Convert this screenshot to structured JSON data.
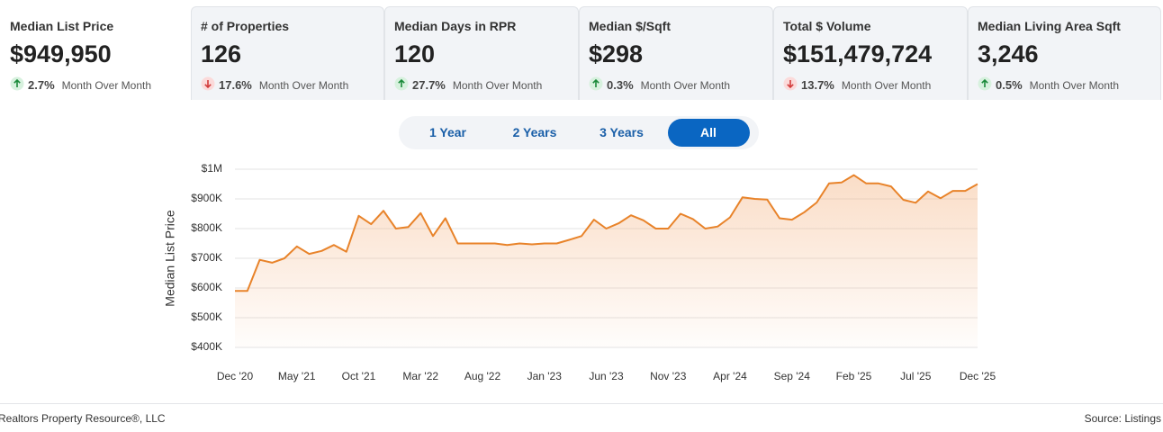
{
  "cards": [
    {
      "title": "Median List Price",
      "value": "$949,950",
      "change": "2.7%",
      "direction": "up",
      "period": "Month Over Month"
    },
    {
      "title": "# of Properties",
      "value": "126",
      "change": "17.6%",
      "direction": "down",
      "period": "Month Over Month"
    },
    {
      "title": "Median Days in RPR",
      "value": "120",
      "change": "27.7%",
      "direction": "up",
      "period": "Month Over Month"
    },
    {
      "title": "Median $/Sqft",
      "value": "$298",
      "change": "0.3%",
      "direction": "up",
      "period": "Month Over Month"
    },
    {
      "title": "Total $ Volume",
      "value": "$151,479,724",
      "change": "13.7%",
      "direction": "down",
      "period": "Month Over Month"
    },
    {
      "title": "Median Living Area Sqft",
      "value": "3,246",
      "change": "0.5%",
      "direction": "up",
      "period": "Month Over Month"
    }
  ],
  "tabs": [
    "1 Year",
    "2 Years",
    "3 Years",
    "All"
  ],
  "selected_tab": 3,
  "chart_data": {
    "type": "line",
    "y_label": "Median List Price",
    "categories": [
      "Dec '20",
      null,
      null,
      null,
      null,
      "May '21",
      null,
      null,
      null,
      null,
      "Oct '21",
      null,
      null,
      null,
      null,
      "Mar '22",
      null,
      null,
      null,
      null,
      "Aug '22",
      null,
      null,
      null,
      null,
      "Jan '23",
      null,
      null,
      null,
      null,
      "Jun '23",
      null,
      null,
      null,
      null,
      "Nov '23",
      null,
      null,
      null,
      null,
      "Apr '24",
      null,
      null,
      null,
      null,
      "Sep '24",
      null,
      null,
      null,
      null,
      "Feb '25",
      null,
      null,
      null,
      null,
      "Jul '25",
      null,
      null,
      null,
      null,
      "Dec '25"
    ],
    "series": [
      {
        "name": "Median List Price",
        "color": "#e8832a",
        "values": [
          590000,
          590000,
          695000,
          685000,
          700000,
          740000,
          715000,
          725000,
          745000,
          722000,
          843000,
          815000,
          860000,
          800000,
          805000,
          852000,
          775000,
          835000,
          750000,
          750000,
          750000,
          750000,
          745000,
          750000,
          747000,
          750000,
          750000,
          762000,
          775000,
          830000,
          800000,
          818000,
          845000,
          828000,
          800000,
          800000,
          850000,
          832000,
          800000,
          807000,
          838000,
          905000,
          900000,
          898000,
          835000,
          830000,
          855000,
          888000,
          952000,
          955000,
          980000,
          952000,
          952000,
          942000,
          897000,
          887000,
          925000,
          902000,
          927000,
          927000,
          950000
        ]
      }
    ],
    "ylim": [
      400000,
      1000000
    ],
    "yticks": [
      {
        "value": 400000,
        "label": "$400K"
      },
      {
        "value": 500000,
        "label": "$500K"
      },
      {
        "value": 600000,
        "label": "$600K"
      },
      {
        "value": 700000,
        "label": "$700K"
      },
      {
        "value": 800000,
        "label": "$800K"
      },
      {
        "value": 900000,
        "label": "$900K"
      },
      {
        "value": 1000000,
        "label": "$1M"
      }
    ],
    "grid": true
  },
  "footer": {
    "left": "Realtors Property Resource®, LLC",
    "right_label": "Source:",
    "right_value": "Listings"
  }
}
